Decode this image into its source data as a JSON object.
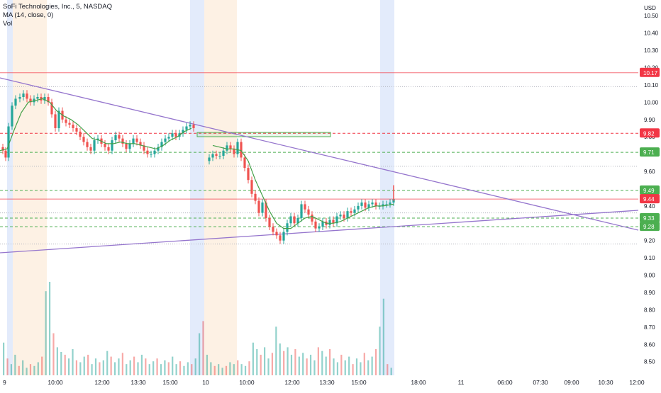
{
  "legend": {
    "symbol": "SoFi Technologies, Inc., 5, NASDAQ",
    "ma": "MA (14, close, 0)",
    "vol": "Vol"
  },
  "currency": "USD",
  "colors": {
    "up": "#26a69a",
    "down": "#ef5350",
    "ma": "#43a047",
    "trendline": "#9575cd",
    "red_level": "#f23645",
    "green_level": "#4caf50",
    "session_blue": "#e3ebfb",
    "session_orange": "#fdf1e4"
  },
  "chart_data": {
    "type": "candlestick",
    "symbol": "SoFi Technologies, Inc., 5, NASDAQ",
    "ylim": [
      8.45,
      10.57
    ],
    "y_ticks": [
      10.5,
      10.4,
      10.3,
      10.2,
      10.1,
      10.0,
      9.9,
      9.8,
      9.6,
      9.5,
      9.4,
      9.2,
      9.1,
      9.0,
      8.9,
      8.8,
      8.7,
      8.6,
      8.5
    ],
    "x_labels": [
      "9",
      "10:00",
      "12:00",
      "13:30",
      "15:00",
      "10",
      "10:00",
      "12:00",
      "13:30",
      "15:00",
      "18:00",
      "11",
      "06:00",
      "07:30",
      "09:00",
      "10:30",
      "12:00"
    ],
    "price_labels": [
      {
        "value": "10.17",
        "style": "red-line"
      },
      {
        "value": "9.82",
        "style": "red-dashed"
      },
      {
        "value": "9.71",
        "style": "green-dashed"
      },
      {
        "value": "9.49",
        "style": "green-dashed"
      },
      {
        "value": "9.44",
        "style": "red-line"
      },
      {
        "value": "9.33",
        "style": "green-dashed"
      },
      {
        "value": "9.28",
        "style": "green-dashed"
      }
    ],
    "dotted_levels": [
      10.09,
      9.63,
      9.36,
      9.18
    ],
    "close_path": [
      [
        0,
        9.74
      ],
      [
        4,
        9.72
      ],
      [
        8,
        9.68
      ],
      [
        12,
        9.86
      ],
      [
        17,
        9.98
      ],
      [
        22,
        10.02
      ],
      [
        28,
        10.03
      ],
      [
        33,
        10.05
      ],
      [
        38,
        10.02
      ],
      [
        43,
        10.0
      ],
      [
        48,
        10.02
      ],
      [
        53,
        10.03
      ],
      [
        58,
        10.01
      ],
      [
        63,
        10.03
      ],
      [
        68,
        10.0
      ],
      [
        73,
        9.93
      ],
      [
        78,
        9.85
      ],
      [
        83,
        9.95
      ],
      [
        88,
        9.9
      ],
      [
        93,
        9.88
      ],
      [
        98,
        9.87
      ],
      [
        103,
        9.85
      ],
      [
        108,
        9.83
      ],
      [
        113,
        9.8
      ],
      [
        118,
        9.77
      ],
      [
        123,
        9.74
      ],
      [
        128,
        9.72
      ],
      [
        133,
        9.78
      ],
      [
        138,
        9.79
      ],
      [
        143,
        9.76
      ],
      [
        148,
        9.74
      ],
      [
        153,
        9.72
      ],
      [
        158,
        9.78
      ],
      [
        163,
        9.81
      ],
      [
        168,
        9.79
      ],
      [
        173,
        9.76
      ],
      [
        178,
        9.73
      ],
      [
        183,
        9.76
      ],
      [
        188,
        9.79
      ],
      [
        193,
        9.77
      ],
      [
        198,
        9.75
      ],
      [
        203,
        9.72
      ],
      [
        208,
        9.7
      ],
      [
        213,
        9.7
      ],
      [
        218,
        9.72
      ],
      [
        223,
        9.74
      ],
      [
        228,
        9.77
      ],
      [
        233,
        9.79
      ],
      [
        238,
        9.8
      ],
      [
        243,
        9.82
      ],
      [
        248,
        9.8
      ],
      [
        253,
        9.82
      ],
      [
        258,
        9.84
      ],
      [
        263,
        9.86
      ],
      [
        268,
        9.87
      ],
      [
        273,
        9.85
      ],
      [
        290,
        9.66
      ],
      [
        295,
        9.68
      ],
      [
        300,
        9.7
      ],
      [
        305,
        9.69
      ],
      [
        310,
        9.69
      ],
      [
        315,
        9.72
      ],
      [
        320,
        9.75
      ],
      [
        325,
        9.73
      ],
      [
        330,
        9.7
      ],
      [
        335,
        9.77
      ],
      [
        340,
        9.68
      ],
      [
        345,
        9.62
      ],
      [
        350,
        9.55
      ],
      [
        355,
        9.47
      ],
      [
        360,
        9.43
      ],
      [
        365,
        9.36
      ],
      [
        370,
        9.42
      ],
      [
        375,
        9.33
      ],
      [
        380,
        9.28
      ],
      [
        385,
        9.25
      ],
      [
        390,
        9.23
      ],
      [
        395,
        9.2
      ],
      [
        400,
        9.25
      ],
      [
        405,
        9.3
      ],
      [
        410,
        9.34
      ],
      [
        415,
        9.3
      ],
      [
        420,
        9.33
      ],
      [
        425,
        9.41
      ],
      [
        430,
        9.38
      ],
      [
        435,
        9.35
      ],
      [
        440,
        9.31
      ],
      [
        445,
        9.27
      ],
      [
        450,
        9.28
      ],
      [
        455,
        9.31
      ],
      [
        460,
        9.29
      ],
      [
        465,
        9.32
      ],
      [
        470,
        9.3
      ],
      [
        475,
        9.34
      ],
      [
        480,
        9.35
      ],
      [
        485,
        9.33
      ],
      [
        490,
        9.37
      ],
      [
        495,
        9.36
      ],
      [
        500,
        9.38
      ],
      [
        505,
        9.4
      ],
      [
        510,
        9.42
      ],
      [
        515,
        9.39
      ],
      [
        520,
        9.41
      ],
      [
        525,
        9.42
      ],
      [
        530,
        9.4
      ],
      [
        535,
        9.4
      ],
      [
        540,
        9.41
      ],
      [
        545,
        9.41
      ],
      [
        550,
        9.42
      ],
      [
        555,
        9.44
      ]
    ],
    "ma_path": [
      [
        0,
        9.72
      ],
      [
        10,
        9.73
      ],
      [
        20,
        9.84
      ],
      [
        30,
        9.94
      ],
      [
        40,
        10.0
      ],
      [
        50,
        10.01
      ],
      [
        60,
        10.02
      ],
      [
        70,
        10.0
      ],
      [
        80,
        9.95
      ],
      [
        90,
        9.92
      ],
      [
        100,
        9.9
      ],
      [
        110,
        9.87
      ],
      [
        120,
        9.83
      ],
      [
        130,
        9.79
      ],
      [
        140,
        9.78
      ],
      [
        150,
        9.76
      ],
      [
        160,
        9.76
      ],
      [
        170,
        9.77
      ],
      [
        180,
        9.76
      ],
      [
        190,
        9.76
      ],
      [
        200,
        9.75
      ],
      [
        210,
        9.74
      ],
      [
        220,
        9.73
      ],
      [
        230,
        9.75
      ],
      [
        240,
        9.78
      ],
      [
        250,
        9.8
      ],
      [
        260,
        9.83
      ],
      [
        270,
        9.85
      ],
      [
        300,
        9.75
      ],
      [
        310,
        9.74
      ],
      [
        320,
        9.73
      ],
      [
        330,
        9.73
      ],
      [
        340,
        9.72
      ],
      [
        350,
        9.66
      ],
      [
        360,
        9.55
      ],
      [
        370,
        9.46
      ],
      [
        380,
        9.37
      ],
      [
        390,
        9.3
      ],
      [
        400,
        9.27
      ],
      [
        410,
        9.27
      ],
      [
        420,
        9.3
      ],
      [
        430,
        9.33
      ],
      [
        440,
        9.34
      ],
      [
        450,
        9.32
      ],
      [
        460,
        9.3
      ],
      [
        470,
        9.3
      ],
      [
        480,
        9.31
      ],
      [
        490,
        9.33
      ],
      [
        500,
        9.35
      ],
      [
        510,
        9.37
      ],
      [
        520,
        9.39
      ],
      [
        530,
        9.4
      ],
      [
        540,
        9.4
      ],
      [
        555,
        9.41
      ]
    ],
    "volume_series_y": "relative",
    "volume": [
      0.35,
      0.18,
      0.12,
      0.22,
      0.1,
      0.16,
      0.08,
      0.12,
      0.1,
      0.14,
      0.2,
      0.9,
      1.0,
      0.45,
      0.3,
      0.25,
      0.22,
      0.18,
      0.28,
      0.16,
      0.14,
      0.2,
      0.22,
      0.12,
      0.18,
      0.14,
      0.16,
      0.26,
      0.2,
      0.14,
      0.18,
      0.24,
      0.12,
      0.16,
      0.2,
      0.14,
      0.22,
      0.18,
      0.12,
      0.15,
      0.18,
      0.12,
      0.16,
      0.14,
      0.2,
      0.12,
      0.15,
      0.1,
      0.14,
      0.12,
      0.18,
      0.45,
      0.58,
      0.22,
      0.14,
      0.1,
      0.12,
      0.08,
      0.1,
      0.14,
      0.12,
      0.16,
      0.12,
      0.1,
      0.15,
      0.35,
      0.28,
      0.22,
      0.3,
      0.18,
      0.24,
      0.52,
      0.34,
      0.26,
      0.3,
      0.22,
      0.28,
      0.2,
      0.24,
      0.18,
      0.22,
      0.16,
      0.3,
      0.26,
      0.2,
      0.28,
      0.18,
      0.14,
      0.22,
      0.16,
      0.2,
      0.12,
      0.18,
      0.14,
      0.24,
      0.16,
      0.2,
      0.28,
      0.52,
      0.82,
      0.12,
      0.08
    ]
  }
}
